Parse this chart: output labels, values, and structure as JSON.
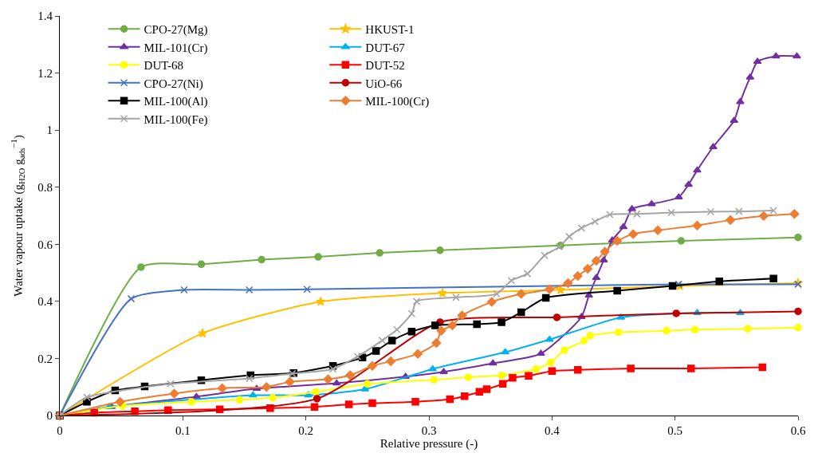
{
  "chart_data": {
    "type": "line",
    "xlabel": "Relative pressure (-)",
    "ylabel": "Water vapour uptake (g$_{H2O}$ g$_{ads}$$^{−1}$)",
    "xlim": [
      0,
      0.6
    ],
    "xticks": [
      0,
      0.1,
      0.2,
      0.3,
      0.4,
      0.5,
      0.6
    ],
    "ylim": [
      0,
      1.4
    ],
    "yticks": [
      0,
      0.2,
      0.4,
      0.6,
      0.8,
      1,
      1.2,
      1.4
    ],
    "legend": "top left",
    "series": [
      {
        "name": "CPO-27(Mg)",
        "color": "#70ad47",
        "marker": "circle",
        "x": [
          0,
          0.066,
          0.115,
          0.164,
          0.21,
          0.26,
          0.309,
          0.407,
          0.505,
          0.6
        ],
        "values": [
          0,
          0.52,
          0.53,
          0.546,
          0.556,
          0.57,
          0.579,
          0.596,
          0.612,
          0.624
        ]
      },
      {
        "name": "HKUST-1",
        "color": "#ffc000",
        "marker": "star",
        "x": [
          0,
          0.116,
          0.212,
          0.311,
          0.407,
          0.504,
          0.6
        ],
        "values": [
          0,
          0.288,
          0.399,
          0.429,
          0.44,
          0.454,
          0.464
        ]
      },
      {
        "name": "MIL-101(Cr)",
        "color": "#7030a0",
        "marker": "triangle",
        "x": [
          0,
          0.042,
          0.111,
          0.16,
          0.225,
          0.281,
          0.312,
          0.352,
          0.391,
          0.424,
          0.43,
          0.436,
          0.442,
          0.449,
          0.458,
          0.465,
          0.481,
          0.503,
          0.511,
          0.518,
          0.531,
          0.548,
          0.553,
          0.561,
          0.567,
          0.582,
          0.599
        ],
        "values": [
          0,
          0.031,
          0.066,
          0.094,
          0.113,
          0.136,
          0.153,
          0.183,
          0.217,
          0.346,
          0.421,
          0.483,
          0.544,
          0.614,
          0.661,
          0.724,
          0.741,
          0.765,
          0.809,
          0.859,
          0.941,
          1.033,
          1.099,
          1.185,
          1.24,
          1.259,
          1.259
        ]
      },
      {
        "name": "DUT-67",
        "color": "#00b0f0",
        "marker": "triangle",
        "x": [
          0,
          0.04,
          0.157,
          0.202,
          0.248,
          0.303,
          0.362,
          0.398,
          0.456,
          0.518,
          0.553
        ],
        "values": [
          0,
          0.03,
          0.071,
          0.071,
          0.092,
          0.163,
          0.222,
          0.266,
          0.344,
          0.36,
          0.36
        ]
      },
      {
        "name": "DUT-68",
        "color": "#ffff00",
        "marker": "circle",
        "x": [
          0,
          0.051,
          0.107,
          0.146,
          0.173,
          0.208,
          0.25,
          0.304,
          0.332,
          0.359,
          0.387,
          0.399,
          0.41,
          0.426,
          0.431,
          0.454,
          0.493,
          0.516,
          0.559,
          0.6
        ],
        "values": [
          0,
          0.034,
          0.048,
          0.055,
          0.062,
          0.083,
          0.111,
          0.125,
          0.134,
          0.141,
          0.163,
          0.186,
          0.229,
          0.262,
          0.28,
          0.292,
          0.297,
          0.301,
          0.304,
          0.308
        ]
      },
      {
        "name": "DUT-52",
        "color": "#ff0000",
        "marker": "square",
        "x": [
          0,
          0.028,
          0.061,
          0.088,
          0.13,
          0.171,
          0.207,
          0.235,
          0.254,
          0.289,
          0.317,
          0.329,
          0.341,
          0.347,
          0.36,
          0.368,
          0.381,
          0.4,
          0.421,
          0.464,
          0.513,
          0.571
        ],
        "values": [
          0,
          0.01,
          0.015,
          0.019,
          0.022,
          0.026,
          0.03,
          0.039,
          0.043,
          0.048,
          0.057,
          0.068,
          0.083,
          0.092,
          0.111,
          0.132,
          0.139,
          0.156,
          0.16,
          0.165,
          0.165,
          0.169
        ]
      },
      {
        "name": "CPO-27(Ni)",
        "color": "#4472c4",
        "marker": "cross",
        "x": [
          0,
          0.058,
          0.101,
          0.154,
          0.201,
          0.503,
          0.6
        ],
        "values": [
          0,
          0.409,
          0.44,
          0.44,
          0.442,
          0.46,
          0.46
        ]
      },
      {
        "name": "UiO-66",
        "color": "#c00000",
        "marker": "circle",
        "x": [
          0,
          0.209,
          0.309,
          0.404,
          0.501,
          0.6
        ],
        "values": [
          0,
          0.059,
          0.327,
          0.344,
          0.358,
          0.365
        ]
      },
      {
        "name": "MIL-100(Al)",
        "color": "#000000",
        "marker": "square",
        "x": [
          0,
          0.022,
          0.045,
          0.069,
          0.115,
          0.155,
          0.19,
          0.222,
          0.246,
          0.257,
          0.27,
          0.286,
          0.305,
          0.339,
          0.359,
          0.375,
          0.395,
          0.453,
          0.498,
          0.536,
          0.58
        ],
        "values": [
          0,
          0.048,
          0.088,
          0.102,
          0.124,
          0.141,
          0.149,
          0.174,
          0.203,
          0.226,
          0.263,
          0.294,
          0.316,
          0.32,
          0.327,
          0.362,
          0.412,
          0.437,
          0.454,
          0.47,
          0.48
        ]
      },
      {
        "name": "MIL-100(Cr)",
        "color": "#ed7d31",
        "marker": "diamond",
        "x": [
          0,
          0.049,
          0.093,
          0.132,
          0.168,
          0.187,
          0.218,
          0.236,
          0.254,
          0.269,
          0.291,
          0.306,
          0.31,
          0.319,
          0.327,
          0.351,
          0.375,
          0.398,
          0.413,
          0.421,
          0.429,
          0.436,
          0.443,
          0.453,
          0.466,
          0.486,
          0.518,
          0.545,
          0.572,
          0.597
        ],
        "values": [
          0,
          0.048,
          0.077,
          0.096,
          0.1,
          0.118,
          0.127,
          0.141,
          0.174,
          0.19,
          0.216,
          0.254,
          0.297,
          0.316,
          0.351,
          0.398,
          0.426,
          0.442,
          0.464,
          0.489,
          0.514,
          0.542,
          0.574,
          0.612,
          0.636,
          0.649,
          0.666,
          0.685,
          0.699,
          0.706
        ]
      },
      {
        "name": "MIL-100(Fe)",
        "color": "#a5a5a5",
        "marker": "cross",
        "x": [
          0,
          0.022,
          0.09,
          0.154,
          0.189,
          0.222,
          0.242,
          0.262,
          0.274,
          0.286,
          0.29,
          0.322,
          0.355,
          0.367,
          0.38,
          0.394,
          0.406,
          0.414,
          0.424,
          0.435,
          0.447,
          0.469,
          0.497,
          0.529,
          0.552,
          0.58
        ],
        "values": [
          0,
          0.064,
          0.111,
          0.13,
          0.147,
          0.163,
          0.207,
          0.263,
          0.301,
          0.357,
          0.4,
          0.414,
          0.426,
          0.473,
          0.497,
          0.561,
          0.591,
          0.627,
          0.657,
          0.68,
          0.704,
          0.706,
          0.711,
          0.714,
          0.715,
          0.718
        ]
      }
    ]
  }
}
